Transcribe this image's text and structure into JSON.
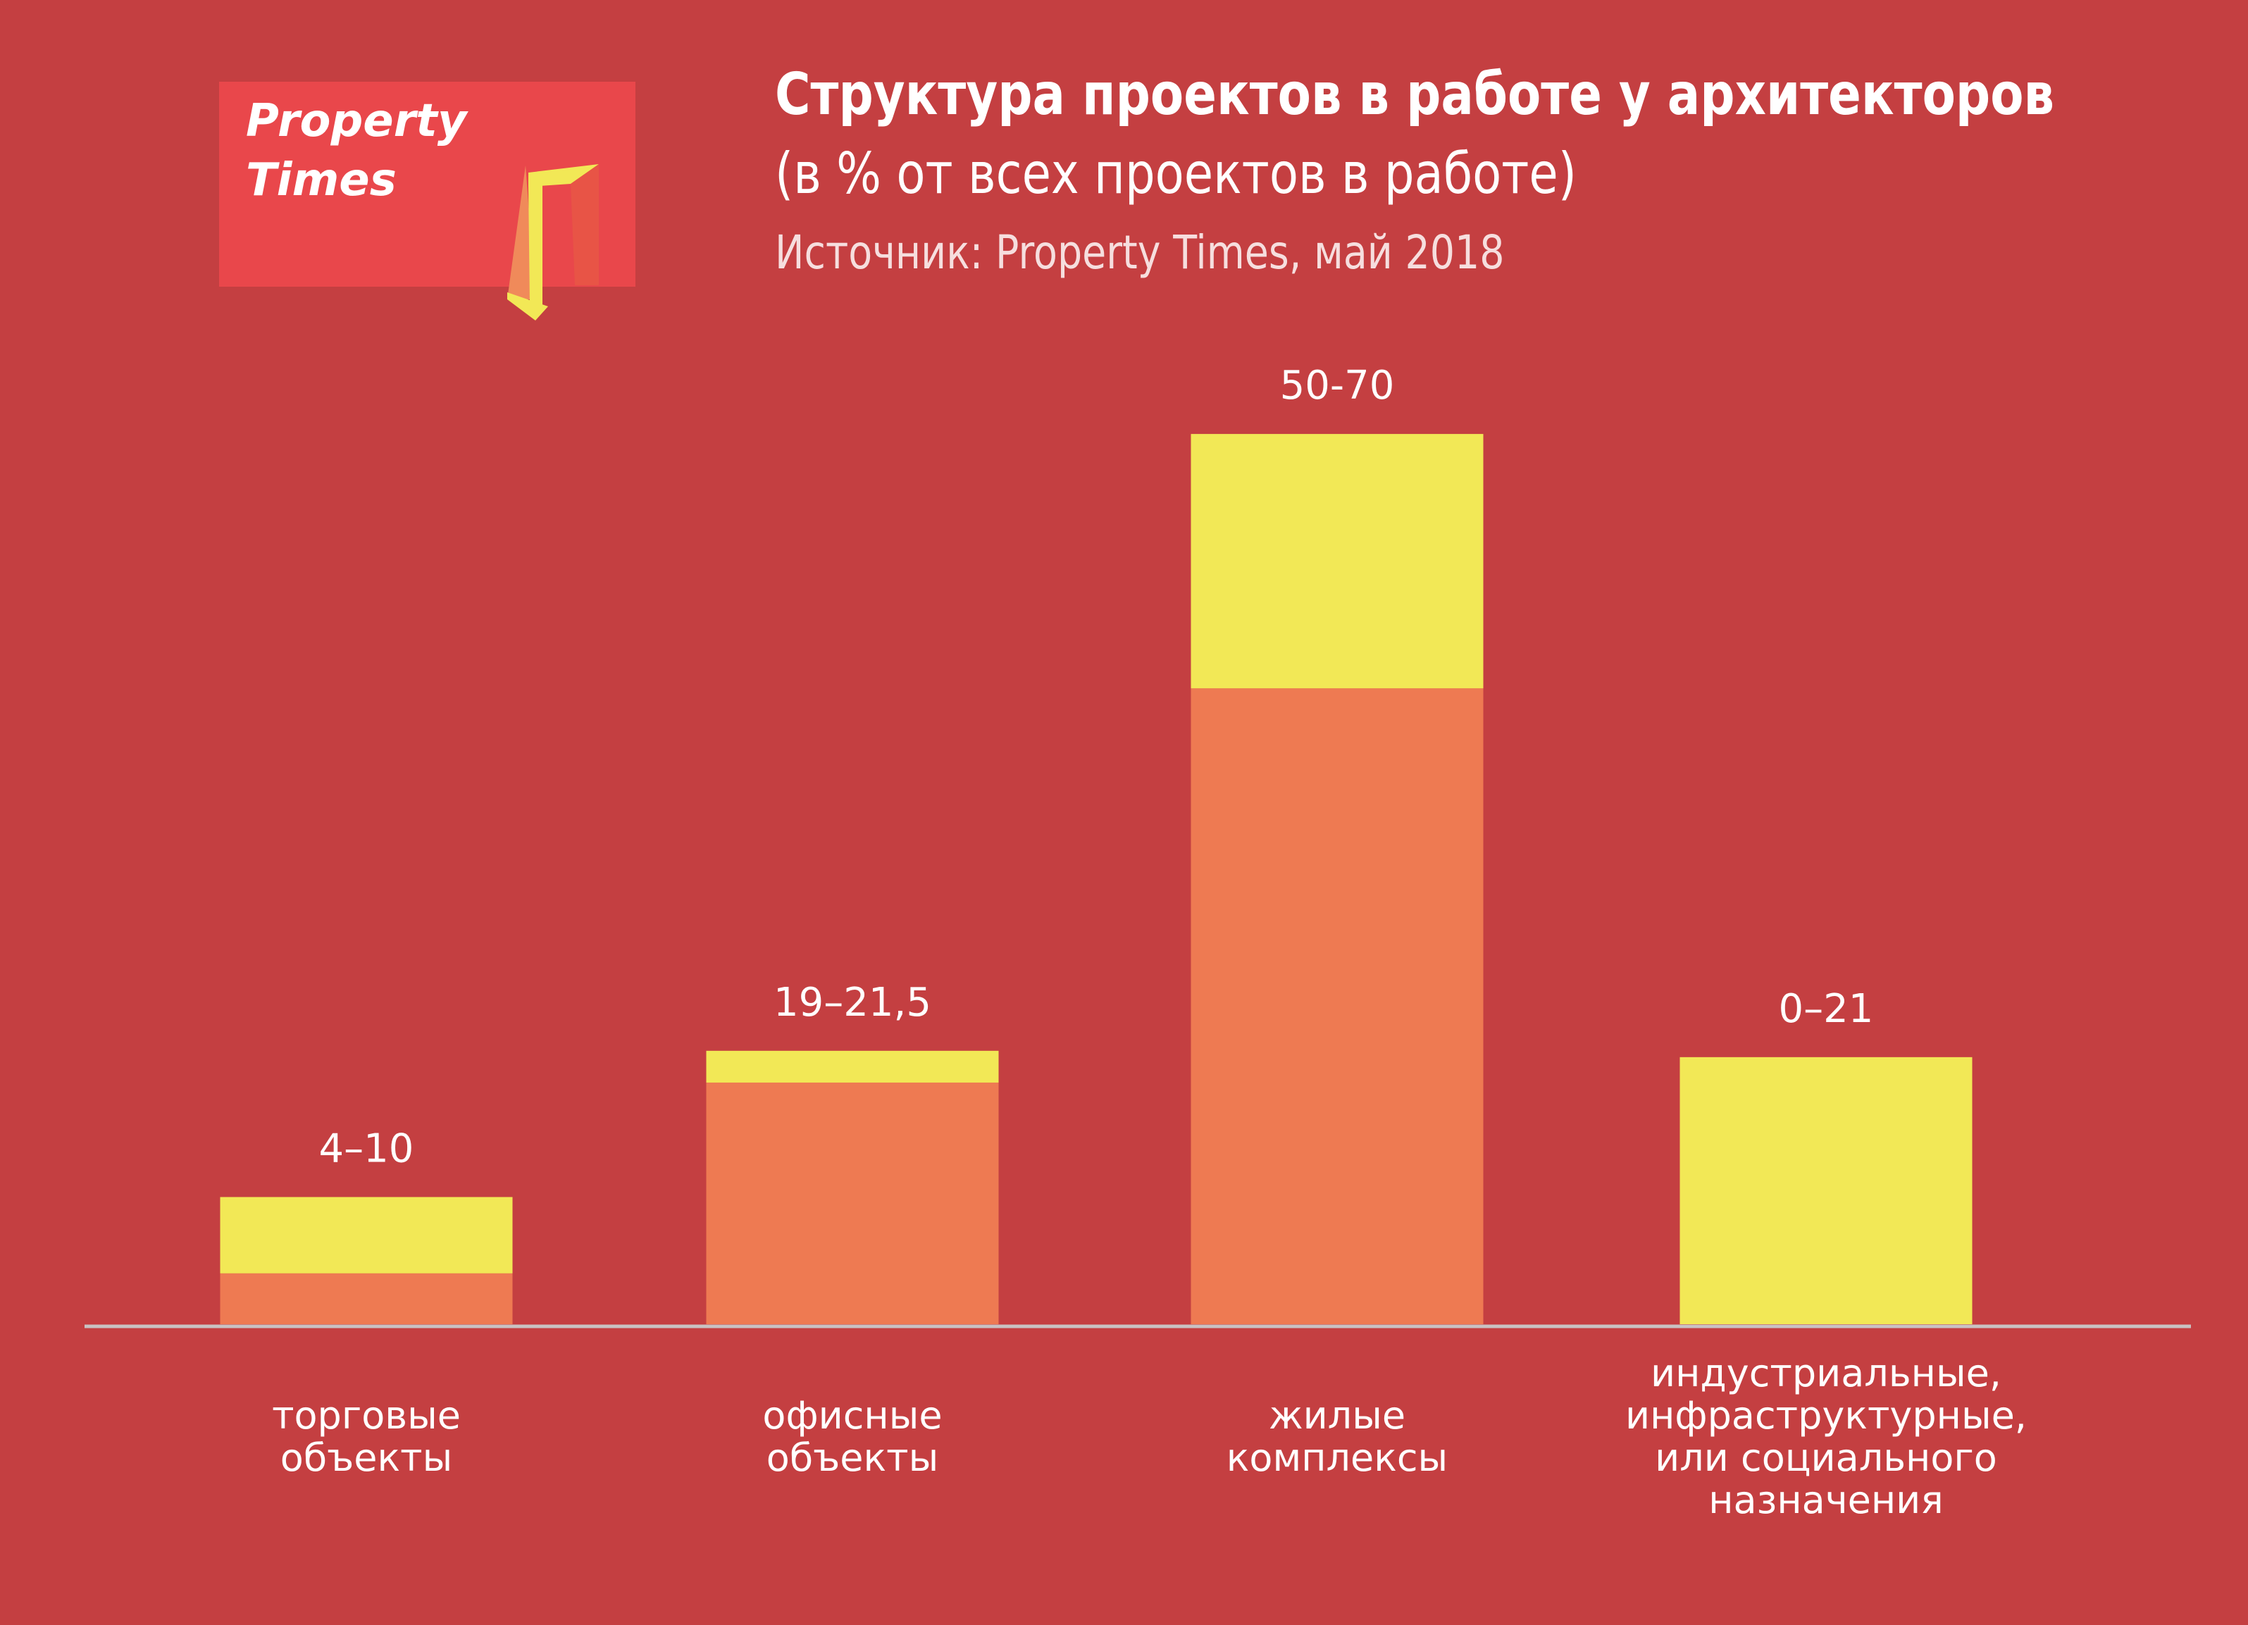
{
  "logo": {
    "line1": "Property",
    "line2": "Times"
  },
  "title": "Структура проектов в работе у архитекторов",
  "subtitle": "(в % от всех проектов в работе)",
  "source": "Источник: Property Times, май 2018",
  "colors": {
    "background": "#c43f41",
    "min_part": "#ee7a52",
    "range_part": "#f2e856",
    "axis": "#c9c2c2",
    "logo_box": "#e9474b"
  },
  "chart_data": {
    "type": "bar",
    "stacked": true,
    "ylim": [
      0,
      72
    ],
    "grid": false,
    "categories": [
      [
        "торговые",
        "объекты"
      ],
      [
        "офисные",
        "объекты"
      ],
      [
        "жилые",
        "комплексы"
      ],
      [
        "индустриальные,",
        "инфраструктурные,",
        "или социального",
        "назначения"
      ]
    ],
    "ranges": [
      {
        "min": 4,
        "max": 10,
        "label": "4–10"
      },
      {
        "min": 19,
        "max": 21.5,
        "label": "19–21,5"
      },
      {
        "min": 50,
        "max": 70,
        "label": "50-70"
      },
      {
        "min": 0,
        "max": 21,
        "label": "0–21"
      }
    ]
  }
}
